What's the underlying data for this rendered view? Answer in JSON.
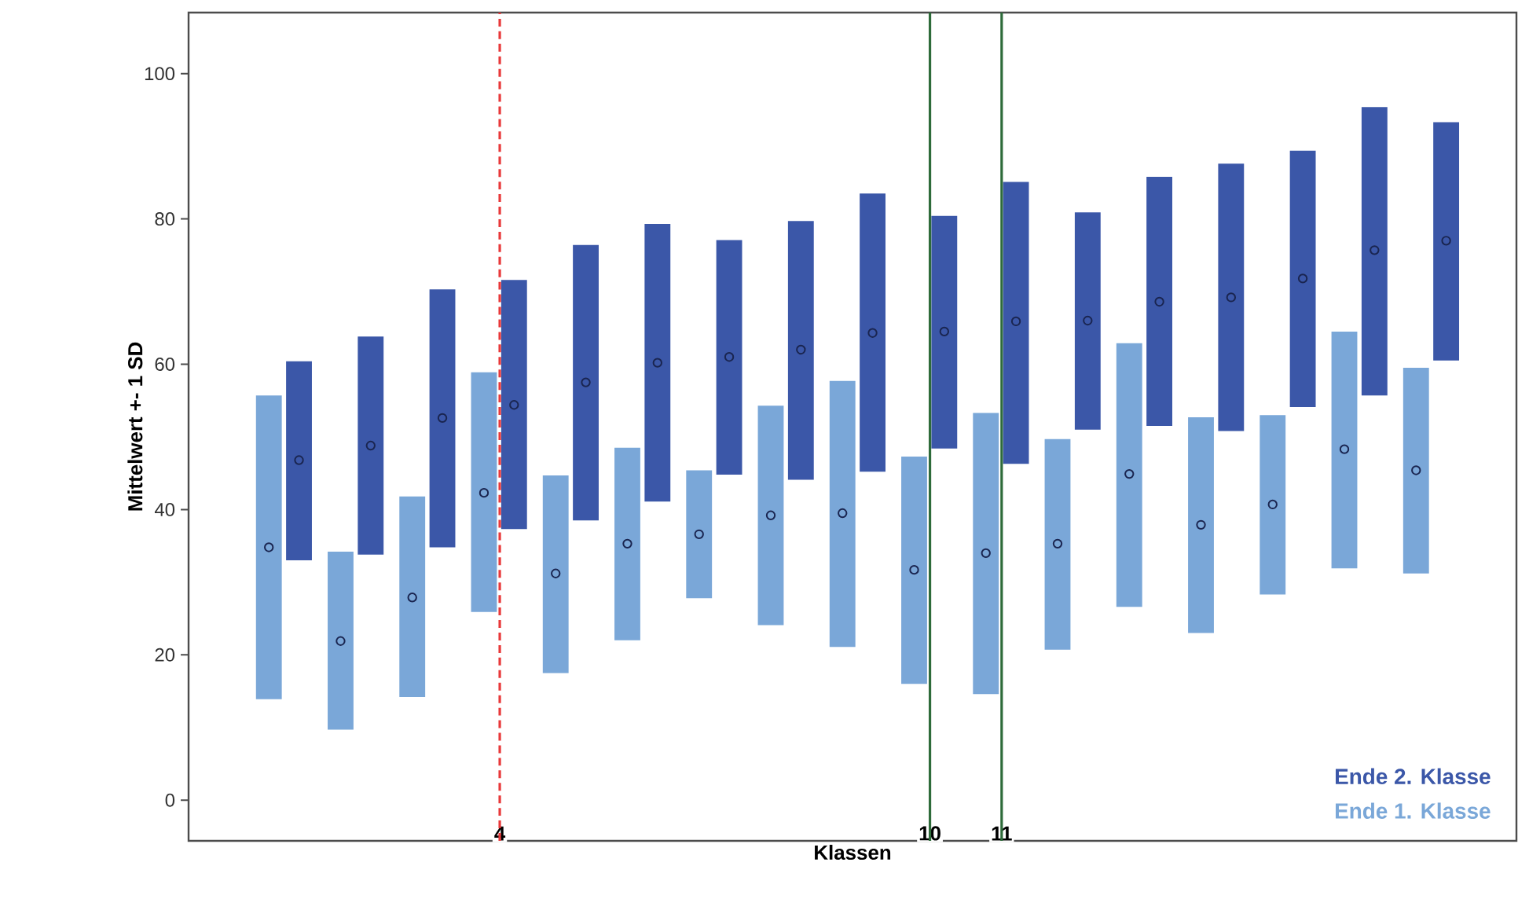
{
  "chart_data": {
    "type": "bar",
    "xlabel": "Klassen",
    "ylabel": "Mittelwert +- 1 SD",
    "xlim": [
      -0.34,
      18.18
    ],
    "xticks": [
      4,
      10,
      11
    ],
    "ylim": [
      -5.6,
      108.4
    ],
    "yticks": [
      0,
      20,
      40,
      60,
      80,
      100
    ],
    "legend": "bottom right",
    "series": [
      {
        "name": "Ende 1. Klasse",
        "color": "#7aa7d8",
        "x": [
          0.78,
          1.78,
          2.78,
          3.78,
          4.78,
          5.78,
          6.78,
          7.78,
          8.78,
          9.78,
          10.78,
          11.78,
          12.78,
          13.78,
          14.78,
          15.78,
          16.78
        ],
        "base": [
          13.9,
          9.7,
          14.2,
          25.9,
          17.5,
          22.0,
          27.8,
          24.1,
          21.1,
          16.0,
          14.6,
          20.7,
          26.6,
          23.0,
          28.3,
          31.9,
          31.2
        ],
        "values": [
          41.8,
          24.5,
          27.6,
          33.0,
          27.2,
          26.5,
          17.6,
          30.2,
          36.6,
          31.3,
          38.7,
          29.0,
          36.3,
          29.7,
          24.7,
          32.6,
          28.3
        ]
      },
      {
        "name": "Ende 2. Klasse",
        "color": "#3b57a8",
        "x": [
          1.2,
          2.2,
          3.2,
          4.2,
          5.2,
          6.2,
          7.2,
          8.2,
          9.2,
          10.2,
          11.2,
          12.2,
          13.2,
          14.2,
          15.2,
          16.2,
          17.2
        ],
        "base": [
          33.0,
          33.8,
          34.8,
          37.3,
          38.5,
          41.1,
          44.8,
          44.1,
          45.2,
          48.4,
          46.3,
          51.0,
          51.5,
          50.8,
          54.1,
          55.7,
          60.5
        ],
        "values": [
          27.4,
          30.0,
          35.5,
          34.3,
          37.9,
          38.2,
          32.3,
          35.6,
          38.3,
          32.0,
          38.8,
          29.9,
          34.3,
          36.8,
          35.3,
          39.7,
          32.8
        ]
      },
      {
        "type": "scatter",
        "color": "#1a2550",
        "marker": "circle",
        "x": [
          0.78,
          1.78,
          2.78,
          3.78,
          4.78,
          5.78,
          6.78,
          7.78,
          8.78,
          9.78,
          10.78,
          11.78,
          12.78,
          13.78,
          14.78,
          15.78,
          16.78
        ],
        "values": [
          34.8,
          21.9,
          27.9,
          42.3,
          31.2,
          35.3,
          36.6,
          39.2,
          39.5,
          31.7,
          34.0,
          35.3,
          44.9,
          37.9,
          40.7,
          48.3,
          45.4
        ]
      },
      {
        "type": "scatter",
        "color": "#1a2550",
        "marker": "circle",
        "x": [
          1.2,
          2.2,
          3.2,
          4.2,
          5.2,
          6.2,
          7.2,
          8.2,
          9.2,
          10.2,
          11.2,
          12.2,
          13.2,
          14.2,
          15.2,
          16.2,
          17.2
        ],
        "values": [
          46.8,
          48.8,
          52.6,
          54.4,
          57.5,
          60.2,
          61.0,
          62.0,
          64.3,
          64.5,
          65.9,
          66.0,
          68.6,
          69.2,
          71.8,
          75.7,
          77.0
        ]
      }
    ],
    "ref_lines": [
      {
        "axis": "x",
        "value": 4,
        "color": "#e8393a",
        "line_style": "dashed"
      },
      {
        "axis": "x",
        "value": 10,
        "color": "#2e6b3a",
        "line_style": "solid"
      },
      {
        "axis": "x",
        "value": 11,
        "color": "#2e6b3a",
        "line_style": "solid"
      }
    ]
  }
}
